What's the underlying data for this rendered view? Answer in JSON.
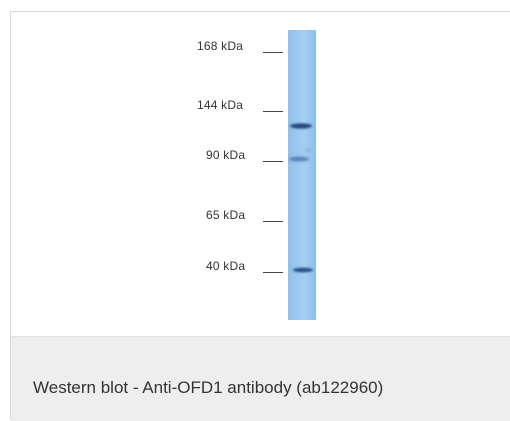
{
  "blot": {
    "markers": [
      {
        "label": "168 kDa"
      },
      {
        "label": "144 kDa"
      },
      {
        "label": "90 kDa"
      },
      {
        "label": "65 kDa"
      },
      {
        "label": "40 kDa"
      }
    ],
    "lane_color": "#9dcbf0",
    "band_color": "#1f3f7a"
  },
  "caption": {
    "text": "Western blot - Anti-OFD1 antibody (ab122960)",
    "background": "#eeeeee"
  }
}
